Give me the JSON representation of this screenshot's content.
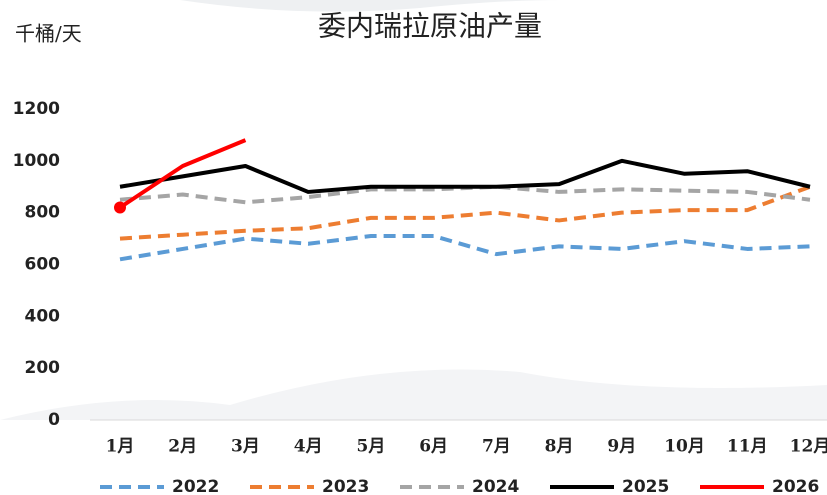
{
  "chart_data": {
    "type": "line",
    "title": "委内瑞拉原油产量",
    "y_label": "千桶/天",
    "categories": [
      "1月",
      "2月",
      "3月",
      "4月",
      "5月",
      "6月",
      "7月",
      "8月",
      "9月",
      "10月",
      "11月",
      "12月"
    ],
    "series": [
      {
        "name": "2022",
        "color": "#5b9bd5",
        "line_style": "dashed",
        "values": [
          620,
          660,
          700,
          680,
          710,
          710,
          640,
          670,
          660,
          690,
          660,
          670
        ]
      },
      {
        "name": "2023",
        "color": "#ed7d31",
        "line_style": "dashed",
        "values": [
          700,
          715,
          730,
          740,
          780,
          780,
          800,
          770,
          800,
          810,
          810,
          900
        ]
      },
      {
        "name": "2024",
        "color": "#a5a5a5",
        "line_style": "dashed",
        "values": [
          850,
          870,
          840,
          860,
          890,
          890,
          900,
          880,
          890,
          885,
          880,
          850
        ]
      },
      {
        "name": "2025",
        "color": "#000000",
        "line_style": "solid",
        "values": [
          900,
          940,
          980,
          880,
          900,
          900,
          900,
          910,
          1000,
          950,
          960,
          900
        ]
      },
      {
        "name": "2026",
        "color": "#ff0000",
        "line_style": "solid",
        "marker": "first",
        "values": [
          820,
          980,
          1080,
          null,
          null,
          null,
          null,
          null,
          null,
          null,
          null,
          null
        ]
      }
    ],
    "ylim": [
      0,
      1200
    ],
    "yticks": [
      0,
      200,
      400,
      600,
      800,
      1000,
      1200
    ],
    "grid": false,
    "legend": "bottom"
  }
}
